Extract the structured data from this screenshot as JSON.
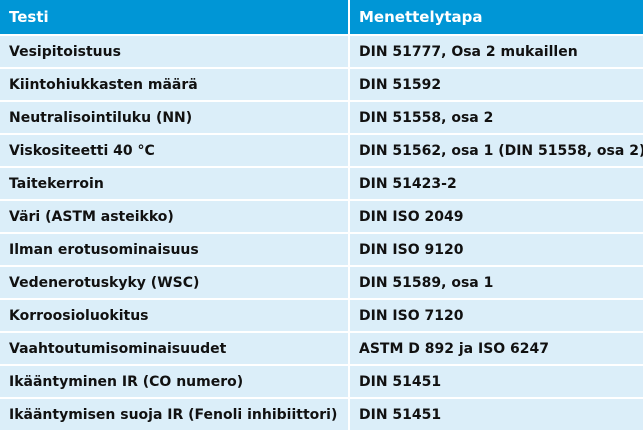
{
  "table": {
    "header": [
      "Testi",
      "Menettelytapa"
    ],
    "rows": [
      [
        "Vesipitoistuus",
        "DIN 51777, Osa 2 mukaillen"
      ],
      [
        "Kiintohiukkasten määrä",
        "DIN 51592"
      ],
      [
        "Neutralisointiluku (NN)",
        "DIN 51558, osa 2"
      ],
      [
        "Viskositeetti 40 °C",
        "DIN 51562, osa 1 (DIN 51558, osa 2)"
      ],
      [
        "Taitekerroin",
        "DIN 51423-2"
      ],
      [
        "Väri (ASTM asteikko)",
        "DIN ISO 2049"
      ],
      [
        "Ilman erotusominaisuus",
        "DIN ISO 9120"
      ],
      [
        "Vedenerotuskyky (WSC)",
        "DIN 51589, osa 1"
      ],
      [
        "Korroosioluokitus",
        "DIN ISO 7120"
      ],
      [
        "Vaahtoutumisominaisuudet",
        "ASTM D 892 ja ISO 6247"
      ],
      [
        "Ikääntyminen IR (CO numero)",
        "DIN 51451"
      ],
      [
        "Ikääntymisen suoja IR (Fenoli inhibiittori)",
        "DIN 51451"
      ]
    ]
  }
}
